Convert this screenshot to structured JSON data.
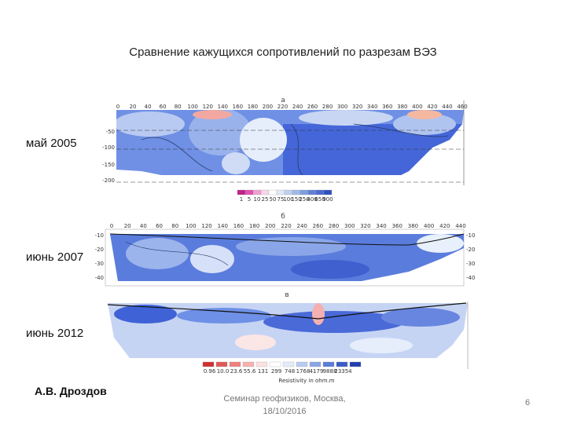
{
  "slide": {
    "title": "Сравнение кажущихся сопротивлений по разрезам ВЭЗ",
    "labels": [
      "май 2005",
      "июнь 2007",
      "июнь 2012"
    ],
    "panel_letters": [
      "а",
      "б",
      "в"
    ],
    "author": "А.В. Дроздов",
    "footer_line1": "Семинар геофизиков, Москва,",
    "footer_line2": "18/10/2016",
    "page_number": "6"
  },
  "panel_a": {
    "top_ticks": [
      "0",
      "20",
      "40",
      "60",
      "80",
      "100",
      "120",
      "140",
      "160",
      "180",
      "200",
      "220",
      "240",
      "260",
      "280",
      "300",
      "320",
      "340",
      "360",
      "380",
      "400",
      "420",
      "440",
      "460"
    ],
    "depth_ticks": [
      "-50",
      "-100",
      "-150",
      "-200"
    ],
    "legend_ticks": [
      "1",
      "5",
      "10",
      "25",
      "50",
      "75",
      "100",
      "150",
      "250",
      "400",
      "650",
      "900"
    ],
    "legend_colors": [
      "#c0208a",
      "#e050b0",
      "#f0a0d0",
      "#f8d8e8",
      "#ffffff",
      "#e0e8f8",
      "#c0d0f0",
      "#a0b8ea",
      "#7f9ee0",
      "#6080d8",
      "#4a6ad0",
      "#2f50c0"
    ]
  },
  "panel_b": {
    "top_ticks": [
      "0",
      "20",
      "40",
      "60",
      "80",
      "100",
      "120",
      "140",
      "160",
      "180",
      "200",
      "220",
      "240",
      "260",
      "280",
      "300",
      "320",
      "340",
      "360",
      "380",
      "400",
      "420",
      "440"
    ],
    "left_ticks": [
      "-10",
      "-20",
      "-30",
      "-40"
    ],
    "right_ticks": [
      "-10",
      "-20",
      "-30",
      "-40"
    ]
  },
  "panel_c": {
    "legend_ticks": [
      "0.96",
      "10.0",
      "23.6",
      "55.6",
      "131",
      "299",
      "748",
      "1768",
      "4179",
      "9888",
      "23354"
    ],
    "legend_colors": [
      "#d03030",
      "#e05858",
      "#f08080",
      "#f8b0b0",
      "#fce0e0",
      "#ffffff",
      "#e4ecfa",
      "#b8cbf0",
      "#8aa6e6",
      "#5a7ed8",
      "#3a5cc8",
      "#2040b0"
    ],
    "legend_title": "Resistivity in ohm.m"
  },
  "colors": {
    "deep_blue": "#3f63d6",
    "mid_blue": "#6e90e6",
    "light_blue": "#b6c8f2",
    "pale": "#eaf0fc",
    "pink": "#f4b0b0",
    "red": "#e06050"
  }
}
